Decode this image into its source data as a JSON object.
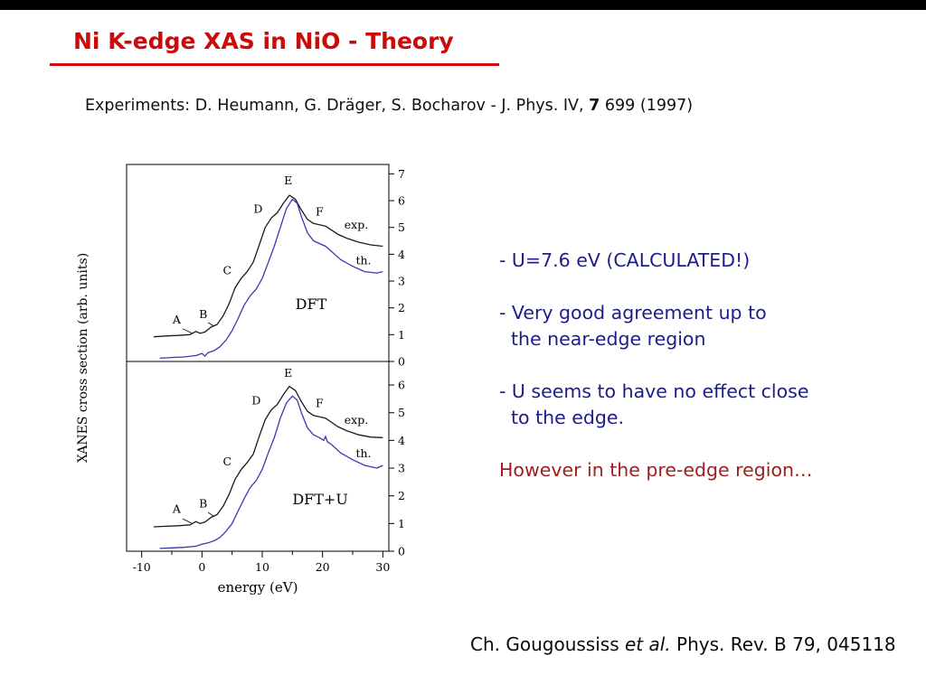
{
  "slide": {
    "title": "Ni K-edge XAS in NiO - Theory",
    "experiments": {
      "prefix": "Experiments: D. Heumann, G. Dräger, S. Bocharov - J. Phys. IV, ",
      "bold": "7",
      "suffix": " 699 (1997)"
    },
    "bullets": {
      "items": [
        {
          "lines": [
            "- U=7.6 eV (CALCULATED!)",
            ""
          ]
        },
        {
          "lines": [
            "- Very good agreement up to",
            "the near-edge region"
          ]
        },
        {
          "lines": [
            "- U seems to have no effect close",
            "to the edge."
          ]
        }
      ],
      "warning": "However in the pre-edge region…"
    },
    "citation": {
      "prefix": "Ch. Gougoussiss ",
      "italic": "et al.",
      "suffix": " Phys. Rev. B 79, 045118"
    },
    "colors": {
      "title_red": "#cc0a0a",
      "note_blue": "#1c1c8c",
      "warning_red": "#9c2020"
    }
  },
  "chart_data": {
    "type": "line",
    "title": "",
    "xlabel": "energy (eV)",
    "ylabel": "XANES cross section (arb. units)",
    "xlim": [
      -12.5,
      31
    ],
    "xticks": [
      -10,
      0,
      10,
      20,
      30
    ],
    "xticks_minor": [
      -5,
      5,
      15,
      25
    ],
    "legend_position": "in-panel text labels (exp. black, th. blue)",
    "grid": false,
    "panels": [
      {
        "name": "DFT",
        "label": "DFT",
        "label_pos": [
          15.5,
          1.95
        ],
        "ylim": [
          0,
          7.35
        ],
        "yticks": [
          0,
          1,
          2,
          3,
          4,
          5,
          6,
          7
        ],
        "series": [
          {
            "name": "exp",
            "color": "#1a1a1a",
            "points": [
              [
                -8,
                0.92
              ],
              [
                -6,
                0.95
              ],
              [
                -4,
                0.97
              ],
              [
                -2,
                1.0
              ],
              [
                -1,
                1.12
              ],
              [
                -0.3,
                1.05
              ],
              [
                0.5,
                1.1
              ],
              [
                1.5,
                1.28
              ],
              [
                2.5,
                1.38
              ],
              [
                3.5,
                1.7
              ],
              [
                4.5,
                2.15
              ],
              [
                5.5,
                2.75
              ],
              [
                6.5,
                3.1
              ],
              [
                7.5,
                3.35
              ],
              [
                8.5,
                3.7
              ],
              [
                9.5,
                4.35
              ],
              [
                10.5,
                5.0
              ],
              [
                11.5,
                5.35
              ],
              [
                12.5,
                5.55
              ],
              [
                13.5,
                5.9
              ],
              [
                14.5,
                6.2
              ],
              [
                15.5,
                6.05
              ],
              [
                16.5,
                5.65
              ],
              [
                17.5,
                5.3
              ],
              [
                18.5,
                5.15
              ],
              [
                19.5,
                5.1
              ],
              [
                20.5,
                5.05
              ],
              [
                21.5,
                4.9
              ],
              [
                22.5,
                4.75
              ],
              [
                24,
                4.6
              ],
              [
                26,
                4.45
              ],
              [
                28,
                4.35
              ],
              [
                30,
                4.3
              ]
            ]
          },
          {
            "name": "th",
            "color": "#3939b0",
            "points": [
              [
                -7,
                0.12
              ],
              [
                -5,
                0.15
              ],
              [
                -3,
                0.17
              ],
              [
                -1,
                0.22
              ],
              [
                0,
                0.3
              ],
              [
                0.5,
                0.2
              ],
              [
                1,
                0.33
              ],
              [
                2,
                0.4
              ],
              [
                3,
                0.55
              ],
              [
                4,
                0.8
              ],
              [
                5,
                1.15
              ],
              [
                6,
                1.6
              ],
              [
                7,
                2.1
              ],
              [
                8,
                2.45
              ],
              [
                9,
                2.7
              ],
              [
                10,
                3.1
              ],
              [
                11,
                3.7
              ],
              [
                12,
                4.3
              ],
              [
                13,
                5.0
              ],
              [
                14,
                5.7
              ],
              [
                15,
                6.05
              ],
              [
                15.8,
                5.9
              ],
              [
                16.5,
                5.4
              ],
              [
                17.5,
                4.8
              ],
              [
                18.5,
                4.5
              ],
              [
                19.5,
                4.4
              ],
              [
                20.5,
                4.3
              ],
              [
                21.5,
                4.1
              ],
              [
                23,
                3.8
              ],
              [
                25,
                3.55
              ],
              [
                27,
                3.35
              ],
              [
                29,
                3.3
              ],
              [
                30,
                3.35
              ]
            ]
          }
        ],
        "leaders": [
          [
            -3.2,
            1.22,
            -1.6,
            1.05
          ],
          [
            1.0,
            1.45,
            2.0,
            1.32
          ]
        ],
        "annotations": [
          {
            "text": "A",
            "x": -4.2,
            "y": 1.42
          },
          {
            "text": "B",
            "x": 0.2,
            "y": 1.62
          },
          {
            "text": "C",
            "x": 4.2,
            "y": 3.25
          },
          {
            "text": "D",
            "x": 9.3,
            "y": 5.55
          },
          {
            "text": "E",
            "x": 14.3,
            "y": 6.6
          },
          {
            "text": "F",
            "x": 19.5,
            "y": 5.45
          },
          {
            "text": "exp.",
            "x": 25.6,
            "y": 4.95
          },
          {
            "text": "th.",
            "x": 26.8,
            "y": 3.62
          }
        ]
      },
      {
        "name": "DFT+U",
        "label": "DFT+U",
        "label_pos": [
          15.0,
          1.7
        ],
        "ylim": [
          0,
          6.85
        ],
        "yticks": [
          0,
          1,
          2,
          3,
          4,
          5,
          6
        ],
        "series": [
          {
            "name": "exp",
            "color": "#1a1a1a",
            "points": [
              [
                -8,
                0.88
              ],
              [
                -6,
                0.9
              ],
              [
                -4,
                0.92
              ],
              [
                -2,
                0.95
              ],
              [
                -1,
                1.07
              ],
              [
                -0.3,
                1.0
              ],
              [
                0.5,
                1.05
              ],
              [
                1.5,
                1.22
              ],
              [
                2.5,
                1.32
              ],
              [
                3.5,
                1.62
              ],
              [
                4.5,
                2.05
              ],
              [
                5.5,
                2.6
              ],
              [
                6.5,
                2.95
              ],
              [
                7.5,
                3.2
              ],
              [
                8.5,
                3.5
              ],
              [
                9.5,
                4.15
              ],
              [
                10.5,
                4.75
              ],
              [
                11.5,
                5.1
              ],
              [
                12.5,
                5.3
              ],
              [
                13.5,
                5.65
              ],
              [
                14.5,
                5.95
              ],
              [
                15.5,
                5.8
              ],
              [
                16.5,
                5.4
              ],
              [
                17.5,
                5.05
              ],
              [
                18.5,
                4.9
              ],
              [
                19.5,
                4.85
              ],
              [
                20.5,
                4.8
              ],
              [
                21.5,
                4.65
              ],
              [
                22.5,
                4.5
              ],
              [
                24,
                4.35
              ],
              [
                26,
                4.2
              ],
              [
                28,
                4.12
              ],
              [
                30,
                4.1
              ]
            ]
          },
          {
            "name": "th",
            "color": "#3939b0",
            "points": [
              [
                -7,
                0.1
              ],
              [
                -5,
                0.12
              ],
              [
                -3,
                0.14
              ],
              [
                -1,
                0.18
              ],
              [
                0,
                0.25
              ],
              [
                1,
                0.3
              ],
              [
                2,
                0.38
              ],
              [
                3,
                0.5
              ],
              [
                4,
                0.72
              ],
              [
                5,
                1.0
              ],
              [
                6,
                1.45
              ],
              [
                7,
                1.9
              ],
              [
                8,
                2.3
              ],
              [
                9,
                2.55
              ],
              [
                10,
                2.95
              ],
              [
                11,
                3.55
              ],
              [
                12,
                4.1
              ],
              [
                13,
                4.8
              ],
              [
                14,
                5.35
              ],
              [
                15,
                5.6
              ],
              [
                15.8,
                5.45
              ],
              [
                16.5,
                5.0
              ],
              [
                17.5,
                4.45
              ],
              [
                18.5,
                4.2
              ],
              [
                19.5,
                4.1
              ],
              [
                20.2,
                4.0
              ],
              [
                20.5,
                4.15
              ],
              [
                20.8,
                3.95
              ],
              [
                21.5,
                3.85
              ],
              [
                23,
                3.55
              ],
              [
                25,
                3.3
              ],
              [
                27,
                3.1
              ],
              [
                29,
                3.0
              ],
              [
                30,
                3.1
              ]
            ]
          }
        ],
        "leaders": [
          [
            -3.2,
            1.17,
            -1.6,
            1.0
          ],
          [
            1.0,
            1.4,
            2.0,
            1.26
          ]
        ],
        "annotations": [
          {
            "text": "A",
            "x": -4.2,
            "y": 1.38
          },
          {
            "text": "B",
            "x": 0.2,
            "y": 1.58
          },
          {
            "text": "C",
            "x": 4.2,
            "y": 3.1
          },
          {
            "text": "D",
            "x": 9.0,
            "y": 5.3
          },
          {
            "text": "E",
            "x": 14.3,
            "y": 6.3
          },
          {
            "text": "F",
            "x": 19.5,
            "y": 5.2
          },
          {
            "text": "exp.",
            "x": 25.6,
            "y": 4.6
          },
          {
            "text": "th.",
            "x": 26.8,
            "y": 3.4
          }
        ]
      }
    ]
  }
}
